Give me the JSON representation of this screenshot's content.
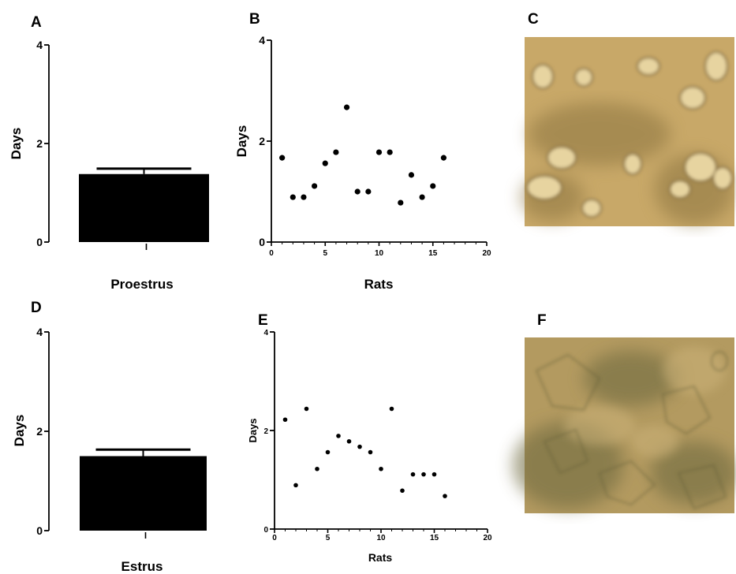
{
  "panels": [
    {
      "id": "A",
      "letter": "A"
    },
    {
      "id": "B",
      "letter": "B"
    },
    {
      "id": "C",
      "letter": "C"
    },
    {
      "id": "D",
      "letter": "D"
    },
    {
      "id": "E",
      "letter": "E"
    },
    {
      "id": "F",
      "letter": "F"
    }
  ],
  "chart_data": [
    {
      "panel": "A",
      "type": "bar",
      "categories": [
        ""
      ],
      "values": [
        1.38
      ],
      "error": [
        0.11
      ],
      "xlabel": "Proestrus",
      "ylabel": "Days",
      "ylim": [
        0,
        4
      ],
      "yticks": [
        0,
        2,
        4
      ],
      "bar_color": "#000000"
    },
    {
      "panel": "B",
      "type": "scatter",
      "x": [
        1,
        2,
        3,
        4,
        5,
        6,
        7,
        8,
        9,
        10,
        11,
        12,
        13,
        14,
        15,
        16
      ],
      "y": [
        1.67,
        0.89,
        0.89,
        1.11,
        1.56,
        1.78,
        2.67,
        1.0,
        1.0,
        1.78,
        1.78,
        0.78,
        1.33,
        0.89,
        1.11,
        1.67
      ],
      "xlabel": "Rats",
      "ylabel": "Days",
      "xlim": [
        0,
        20
      ],
      "ylim": [
        0,
        4
      ],
      "xticks": [
        0,
        5,
        10,
        15,
        20
      ],
      "yticks": [
        0,
        2,
        4
      ]
    },
    {
      "panel": "D",
      "type": "bar",
      "categories": [
        ""
      ],
      "values": [
        1.5
      ],
      "error": [
        0.13
      ],
      "xlabel": "Estrus",
      "ylabel": "Days",
      "ylim": [
        0,
        4
      ],
      "yticks": [
        0,
        2,
        4
      ],
      "bar_color": "#000000"
    },
    {
      "panel": "E",
      "type": "scatter",
      "x": [
        1,
        2,
        3,
        4,
        5,
        6,
        7,
        8,
        9,
        10,
        11,
        12,
        13,
        14,
        15,
        16
      ],
      "y": [
        2.22,
        0.89,
        2.44,
        1.22,
        1.56,
        1.89,
        1.78,
        1.67,
        1.56,
        1.22,
        2.44,
        0.78,
        1.11,
        1.11,
        1.11,
        0.67
      ],
      "xlabel": "Rats",
      "ylabel": "Days",
      "xlim": [
        0,
        20
      ],
      "ylim": [
        0,
        4
      ],
      "xticks": [
        0,
        5,
        10,
        15,
        20
      ],
      "yticks": [
        0,
        2,
        4
      ]
    }
  ],
  "micrographs": [
    {
      "panel": "C",
      "description": "vaginal smear micrograph (proestrus)",
      "colors": {
        "base": "#c8a868",
        "dark": "#8c7440",
        "cell": "#e7d4a0"
      }
    },
    {
      "panel": "F",
      "description": "vaginal smear micrograph (estrus)",
      "colors": {
        "base": "#b39a60",
        "dark": "#6f6a40",
        "cell": "#cdb47a"
      }
    }
  ]
}
